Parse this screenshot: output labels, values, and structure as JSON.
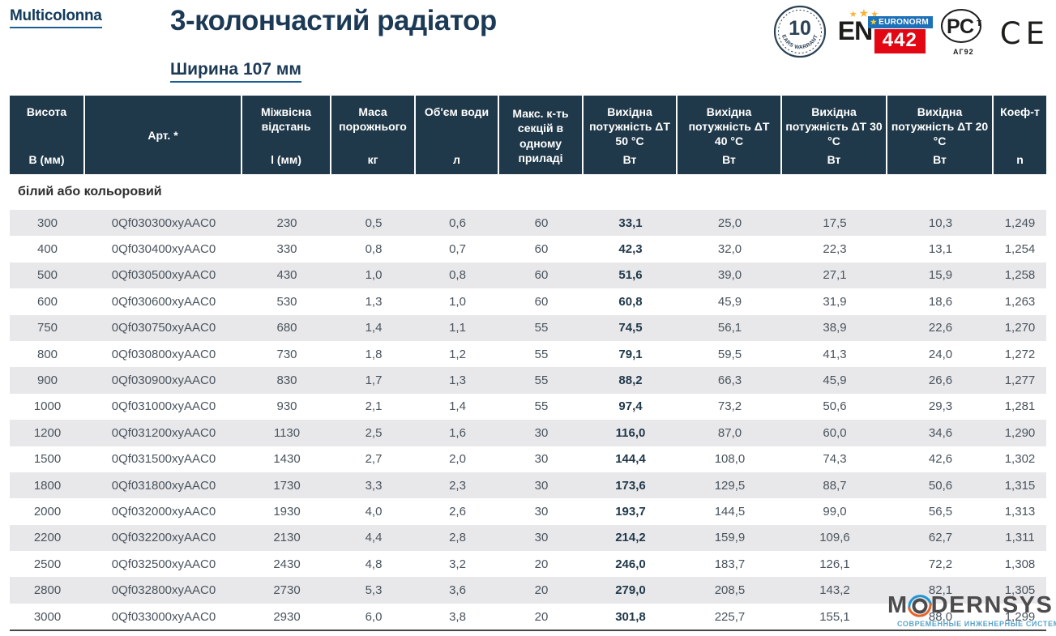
{
  "header": {
    "brand": "Multicolonna",
    "title": "3-колончастий радіатор",
    "subtitle": "Ширина 107 мм"
  },
  "badges": {
    "warranty_number": "10",
    "warranty_text": "YEARS WARRANTY",
    "en_label": "EN",
    "euronorm_label": "EURONORM",
    "euronorm_number": "442",
    "pct_label": "РСт",
    "pct_sub": "АГ92",
    "ce_label": "CE"
  },
  "table": {
    "columns": [
      {
        "label": "Висота",
        "unit": "В (мм)"
      },
      {
        "label": "Арт. *",
        "unit": ""
      },
      {
        "label": "Міжвісна відстань",
        "unit": "l (мм)"
      },
      {
        "label": "Маса порожнього",
        "unit": "кг"
      },
      {
        "label": "Об'єм води",
        "unit": "л"
      },
      {
        "label": "Макс. к-ть секцій в одному приладі",
        "unit": ""
      },
      {
        "label": "Вихідна потужність ΔT 50 °C",
        "unit": "Вт"
      },
      {
        "label": "Вихідна потужність ΔT 40 °C",
        "unit": "Вт"
      },
      {
        "label": "Вихідна потужність ΔT 30 °C",
        "unit": "Вт"
      },
      {
        "label": "Вихідна потужність ΔT 20 °C",
        "unit": "Вт"
      },
      {
        "label": "Коеф-т",
        "unit": "n"
      }
    ],
    "section_label": "білий або кольоровий",
    "rows": [
      [
        "300",
        "0Qf030300xyAAC0",
        "230",
        "0,5",
        "0,6",
        "60",
        "33,1",
        "25,0",
        "17,5",
        "10,3",
        "1,249"
      ],
      [
        "400",
        "0Qf030400xyAAC0",
        "330",
        "0,8",
        "0,7",
        "60",
        "42,3",
        "32,0",
        "22,3",
        "13,1",
        "1,254"
      ],
      [
        "500",
        "0Qf030500xyAAC0",
        "430",
        "1,0",
        "0,8",
        "60",
        "51,6",
        "39,0",
        "27,1",
        "15,9",
        "1,258"
      ],
      [
        "600",
        "0Qf030600xyAAC0",
        "530",
        "1,3",
        "1,0",
        "60",
        "60,8",
        "45,9",
        "31,9",
        "18,6",
        "1,263"
      ],
      [
        "750",
        "0Qf030750xyAAC0",
        "680",
        "1,4",
        "1,1",
        "55",
        "74,5",
        "56,1",
        "38,9",
        "22,6",
        "1,270"
      ],
      [
        "800",
        "0Qf030800xyAAC0",
        "730",
        "1,8",
        "1,2",
        "55",
        "79,1",
        "59,5",
        "41,3",
        "24,0",
        "1,272"
      ],
      [
        "900",
        "0Qf030900xyAAC0",
        "830",
        "1,7",
        "1,3",
        "55",
        "88,2",
        "66,3",
        "45,9",
        "26,6",
        "1,277"
      ],
      [
        "1000",
        "0Qf031000xyAAC0",
        "930",
        "2,1",
        "1,4",
        "55",
        "97,4",
        "73,2",
        "50,6",
        "29,3",
        "1,281"
      ],
      [
        "1200",
        "0Qf031200xyAAC0",
        "1130",
        "2,5",
        "1,6",
        "30",
        "116,0",
        "87,0",
        "60,0",
        "34,6",
        "1,290"
      ],
      [
        "1500",
        "0Qf031500xyAAC0",
        "1430",
        "2,7",
        "2,0",
        "30",
        "144,4",
        "108,0",
        "74,3",
        "42,6",
        "1,302"
      ],
      [
        "1800",
        "0Qf031800xyAAC0",
        "1730",
        "3,3",
        "2,3",
        "30",
        "173,6",
        "129,5",
        "88,7",
        "50,6",
        "1,315"
      ],
      [
        "2000",
        "0Qf032000xyAAC0",
        "1930",
        "4,0",
        "2,6",
        "30",
        "193,7",
        "144,5",
        "99,0",
        "56,5",
        "1,313"
      ],
      [
        "2200",
        "0Qf032200xyAAC0",
        "2130",
        "4,4",
        "2,8",
        "30",
        "214,2",
        "159,9",
        "109,6",
        "62,7",
        "1,311"
      ],
      [
        "2500",
        "0Qf032500xyAAC0",
        "2430",
        "4,8",
        "3,2",
        "20",
        "246,0",
        "183,7",
        "126,1",
        "72,2",
        "1,308"
      ],
      [
        "2800",
        "0Qf032800xyAAC0",
        "2730",
        "5,3",
        "3,6",
        "20",
        "279,0",
        "208,5",
        "143,2",
        "82,1",
        "1,305"
      ],
      [
        "3000",
        "0Qf033000xyAAC0",
        "2930",
        "6,0",
        "3,8",
        "20",
        "301,8",
        "225,7",
        "155,1",
        "88,0",
        "1,299"
      ]
    ]
  },
  "watermark": {
    "name_left": "M",
    "name_right": "DERNSYS",
    "tagline": "СОВРЕМЕННЫЕ ИНЖЕНЕРНЫЕ СИСТЕМЫ"
  },
  "colors": {
    "header_bg": "#20394a",
    "row_stripe": "#e8e8ea",
    "accent_blue": "#1d5f94",
    "euronorm_blue": "#1d71b8",
    "euronorm_red": "#e30613",
    "star_gold": "#f8b334",
    "watermark_blue": "#2196d3",
    "watermark_orange": "#e8622a"
  }
}
